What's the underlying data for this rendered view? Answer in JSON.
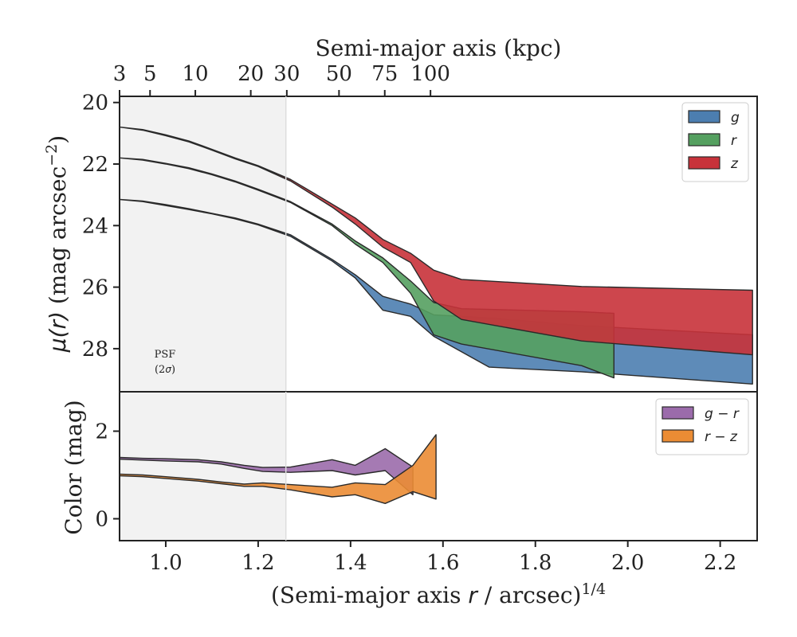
{
  "chart_data": [
    {
      "type": "area",
      "panel": "top",
      "ylabel_main": "μ(r)",
      "ylabel_unit": " (mag arcsec",
      "ylabel_exp": "−2",
      "ylabel_close": ")",
      "top_axis_label": "Semi-major axis (kpc)",
      "top_ticks": [
        3,
        5,
        10,
        20,
        30,
        50,
        75,
        100
      ],
      "top_tick_positions_x": [
        0.9,
        0.966,
        1.064,
        1.184,
        1.262,
        1.375,
        1.474,
        1.573
      ],
      "xlim": [
        0.9,
        2.28
      ],
      "ylim": [
        29.4,
        19.8
      ],
      "yticks": [
        20,
        22,
        24,
        26,
        28
      ],
      "psf_shade_x": [
        0.9,
        1.26
      ],
      "psf_label_line1": "PSF",
      "psf_label_line2": "(2σ)",
      "legend_position": "upper right",
      "series": [
        {
          "name": "g",
          "color": "#4c7eb0",
          "x": [
            0.9,
            0.95,
            1.0,
            1.05,
            1.1,
            1.15,
            1.2,
            1.27,
            1.36,
            1.41,
            1.47,
            1.53,
            1.58,
            1.7,
            1.9,
            2.27
          ],
          "y_upper": [
            23.15,
            23.2,
            23.32,
            23.45,
            23.6,
            23.75,
            23.95,
            24.3,
            25.1,
            25.6,
            26.3,
            26.55,
            26.9,
            27.0,
            27.25,
            27.55
          ],
          "y_lower": [
            23.15,
            23.22,
            23.35,
            23.48,
            23.62,
            23.78,
            23.98,
            24.35,
            25.15,
            25.7,
            26.75,
            26.95,
            27.6,
            28.6,
            28.75,
            29.15
          ]
        },
        {
          "name": "r",
          "color": "#55a060",
          "x": [
            0.9,
            0.95,
            1.0,
            1.05,
            1.1,
            1.15,
            1.2,
            1.27,
            1.36,
            1.41,
            1.47,
            1.53,
            1.58,
            1.64,
            1.9,
            1.97
          ],
          "y_upper": [
            21.8,
            21.85,
            21.98,
            22.12,
            22.32,
            22.55,
            22.82,
            23.22,
            23.95,
            24.5,
            25.05,
            25.8,
            26.5,
            26.7,
            26.8,
            26.85
          ],
          "y_lower": [
            21.8,
            21.87,
            22.0,
            22.15,
            22.35,
            22.58,
            22.85,
            23.25,
            24.0,
            24.6,
            25.2,
            26.2,
            27.55,
            27.85,
            28.55,
            28.95
          ]
        },
        {
          "name": "z",
          "color": "#c8323a",
          "x": [
            0.9,
            0.95,
            1.0,
            1.05,
            1.1,
            1.15,
            1.2,
            1.27,
            1.36,
            1.41,
            1.47,
            1.53,
            1.58,
            1.64,
            1.9,
            2.27
          ],
          "y_upper": [
            20.8,
            20.88,
            21.05,
            21.25,
            21.52,
            21.8,
            22.05,
            22.5,
            23.3,
            23.75,
            24.45,
            24.9,
            25.45,
            25.75,
            25.98,
            26.1
          ],
          "y_lower": [
            20.8,
            20.9,
            21.08,
            21.28,
            21.55,
            21.83,
            22.08,
            22.55,
            23.4,
            23.95,
            24.7,
            25.2,
            26.45,
            27.05,
            27.75,
            28.2
          ]
        }
      ]
    },
    {
      "type": "area",
      "panel": "bottom",
      "ylabel": "Color (mag)",
      "xlabel_main": "(Semi-major axis ",
      "xlabel_var": "r",
      "xlabel_rest": " / arcsec)",
      "xlabel_exp": "1/4",
      "xlim": [
        0.9,
        2.28
      ],
      "ylim": [
        -0.5,
        2.9
      ],
      "xticks": [
        1.0,
        1.2,
        1.4,
        1.6,
        1.8,
        2.0,
        2.2
      ],
      "xtick_labels": [
        "1.0",
        "1.2",
        "1.4",
        "1.6",
        "1.8",
        "2.0",
        "2.2"
      ],
      "yticks": [
        0,
        2
      ],
      "legend_position": "upper right",
      "series": [
        {
          "name": "g − r",
          "color": "#9b6bab",
          "x": [
            0.9,
            0.95,
            1.0,
            1.07,
            1.12,
            1.17,
            1.21,
            1.27,
            1.36,
            1.41,
            1.475,
            1.535
          ],
          "y_upper": [
            1.4,
            1.38,
            1.37,
            1.35,
            1.3,
            1.22,
            1.17,
            1.18,
            1.35,
            1.22,
            1.6,
            1.18
          ],
          "y_lower": [
            1.36,
            1.34,
            1.32,
            1.3,
            1.25,
            1.15,
            1.08,
            1.06,
            1.1,
            1.0,
            1.1,
            0.55
          ]
        },
        {
          "name": "r − z",
          "color": "#eb8c34",
          "x": [
            0.9,
            0.95,
            1.0,
            1.07,
            1.12,
            1.17,
            1.21,
            1.27,
            1.36,
            1.41,
            1.475,
            1.535,
            1.585
          ],
          "y_upper": [
            1.02,
            1.0,
            0.96,
            0.9,
            0.84,
            0.79,
            0.82,
            0.78,
            0.72,
            0.82,
            0.78,
            1.22,
            1.92
          ],
          "y_lower": [
            0.98,
            0.96,
            0.92,
            0.86,
            0.8,
            0.74,
            0.74,
            0.66,
            0.5,
            0.55,
            0.35,
            0.62,
            0.45
          ]
        }
      ]
    }
  ]
}
